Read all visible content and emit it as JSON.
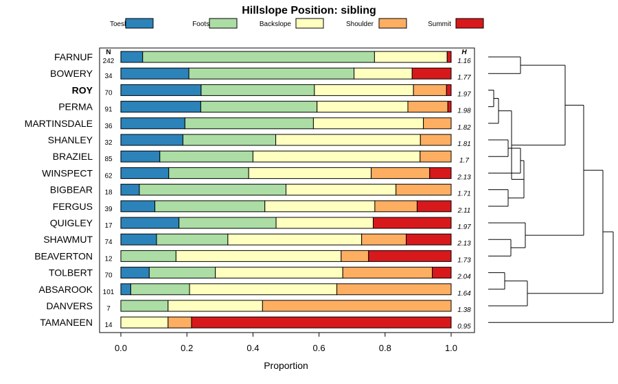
{
  "chart_data": {
    "type": "bar",
    "orientation": "horizontal",
    "stacked": true,
    "title": "Hillslope Position: sibling",
    "xlabel": "Proportion",
    "ylabel": "",
    "xlim": [
      0,
      1
    ],
    "xticks": [
      "0.0",
      "0.2",
      "0.4",
      "0.6",
      "0.8",
      "1.0"
    ],
    "n_header": "N",
    "h_header": "H",
    "highlight": "ROY",
    "legend_position": "top",
    "series": [
      {
        "name": "Toeslope",
        "color": "#2b83ba"
      },
      {
        "name": "Footslope",
        "color": "#abdda4"
      },
      {
        "name": "Backslope",
        "color": "#ffffbf"
      },
      {
        "name": "Shoulder",
        "color": "#fdae61"
      },
      {
        "name": "Summit",
        "color": "#d7191c"
      }
    ],
    "rows": [
      {
        "label": "FARNUF",
        "n": "242",
        "h": "1.16",
        "values": [
          0.066,
          0.702,
          0.22,
          0.0,
          0.012
        ]
      },
      {
        "label": "BOWERY",
        "n": "34",
        "h": "1.77",
        "values": [
          0.206,
          0.5,
          0.176,
          0.0,
          0.118
        ]
      },
      {
        "label": "ROY",
        "n": "70",
        "h": "1.97",
        "values": [
          0.243,
          0.343,
          0.3,
          0.1,
          0.014
        ]
      },
      {
        "label": "PERMA",
        "n": "91",
        "h": "1.98",
        "values": [
          0.242,
          0.352,
          0.275,
          0.121,
          0.01
        ]
      },
      {
        "label": "MARTINSDALE",
        "n": "36",
        "h": "1.82",
        "values": [
          0.194,
          0.389,
          0.333,
          0.084,
          0.0
        ]
      },
      {
        "label": "SHANLEY",
        "n": "32",
        "h": "1.81",
        "values": [
          0.188,
          0.281,
          0.438,
          0.093,
          0.0
        ]
      },
      {
        "label": "BRAZIEL",
        "n": "85",
        "h": "1.7",
        "values": [
          0.118,
          0.282,
          0.506,
          0.094,
          0.0
        ]
      },
      {
        "label": "WINSPECT",
        "n": "62",
        "h": "2.13",
        "values": [
          0.145,
          0.242,
          0.371,
          0.177,
          0.065
        ]
      },
      {
        "label": "BIGBEAR",
        "n": "18",
        "h": "1.71",
        "values": [
          0.056,
          0.444,
          0.333,
          0.167,
          0.0
        ]
      },
      {
        "label": "FERGUS",
        "n": "39",
        "h": "2.11",
        "values": [
          0.103,
          0.333,
          0.333,
          0.128,
          0.103
        ]
      },
      {
        "label": "QUIGLEY",
        "n": "17",
        "h": "1.97",
        "values": [
          0.176,
          0.294,
          0.294,
          0.0,
          0.236
        ]
      },
      {
        "label": "SHAWMUT",
        "n": "74",
        "h": "2.13",
        "values": [
          0.108,
          0.216,
          0.405,
          0.135,
          0.136
        ]
      },
      {
        "label": "BEAVERTON",
        "n": "12",
        "h": "1.73",
        "values": [
          0.0,
          0.167,
          0.5,
          0.083,
          0.25
        ]
      },
      {
        "label": "TOLBERT",
        "n": "70",
        "h": "2.04",
        "values": [
          0.086,
          0.2,
          0.386,
          0.271,
          0.057
        ]
      },
      {
        "label": "ABSAROOK",
        "n": "101",
        "h": "1.64",
        "values": [
          0.03,
          0.178,
          0.446,
          0.346,
          0.0
        ]
      },
      {
        "label": "DANVERS",
        "n": "7",
        "h": "1.38",
        "values": [
          0.0,
          0.143,
          0.286,
          0.571,
          0.0
        ]
      },
      {
        "label": "TAMANEEN",
        "n": "14",
        "h": "0.95",
        "values": [
          0.0,
          0.0,
          0.143,
          0.071,
          0.786
        ]
      }
    ]
  }
}
